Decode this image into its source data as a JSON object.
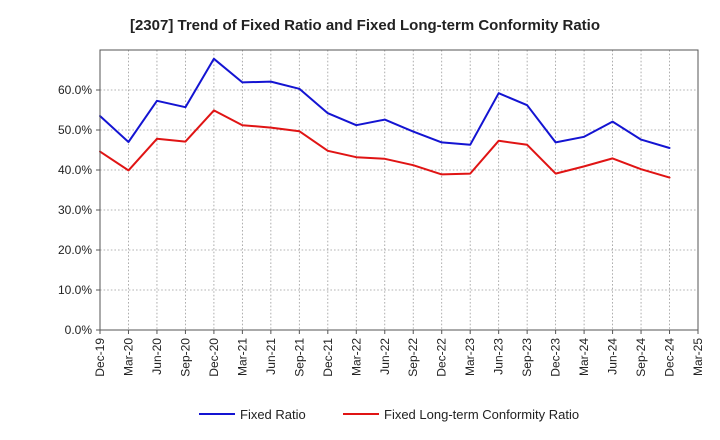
{
  "chart_data": {
    "type": "line",
    "title": "[2307]  Trend of Fixed Ratio and Fixed Long-term Conformity Ratio",
    "xlabel": "",
    "ylabel": "",
    "ylim": [
      0,
      70
    ],
    "y_ticks": [
      0,
      10,
      20,
      30,
      40,
      50,
      60
    ],
    "y_tick_labels": [
      "0.0%",
      "10.0%",
      "20.0%",
      "30.0%",
      "40.0%",
      "50.0%",
      "60.0%"
    ],
    "grid": true,
    "legend_position": "bottom",
    "categories": [
      "Dec-19",
      "Mar-20",
      "Jun-20",
      "Sep-20",
      "Dec-20",
      "Mar-21",
      "Jun-21",
      "Sep-21",
      "Dec-21",
      "Mar-22",
      "Jun-22",
      "Sep-22",
      "Dec-22",
      "Mar-23",
      "Jun-23",
      "Sep-23",
      "Dec-23",
      "Mar-24",
      "Jun-24",
      "Sep-24",
      "Dec-24",
      "Mar-25"
    ],
    "series": [
      {
        "name": "Fixed Ratio",
        "color": "#1414d2",
        "values": [
          53.5,
          47.0,
          57.3,
          55.7,
          67.8,
          61.9,
          62.1,
          60.3,
          54.2,
          51.2,
          52.6,
          49.6,
          46.9,
          46.3,
          59.2,
          56.2,
          46.9,
          48.3,
          52.1,
          47.6,
          45.5,
          null
        ]
      },
      {
        "name": "Fixed Long-term Conformity Ratio",
        "color": "#e01414",
        "values": [
          44.6,
          39.9,
          47.8,
          47.1,
          54.9,
          51.2,
          50.6,
          49.7,
          44.8,
          43.2,
          42.8,
          41.2,
          38.9,
          39.1,
          47.3,
          46.3,
          39.1,
          40.9,
          42.9,
          40.2,
          38.1,
          null
        ]
      }
    ]
  }
}
